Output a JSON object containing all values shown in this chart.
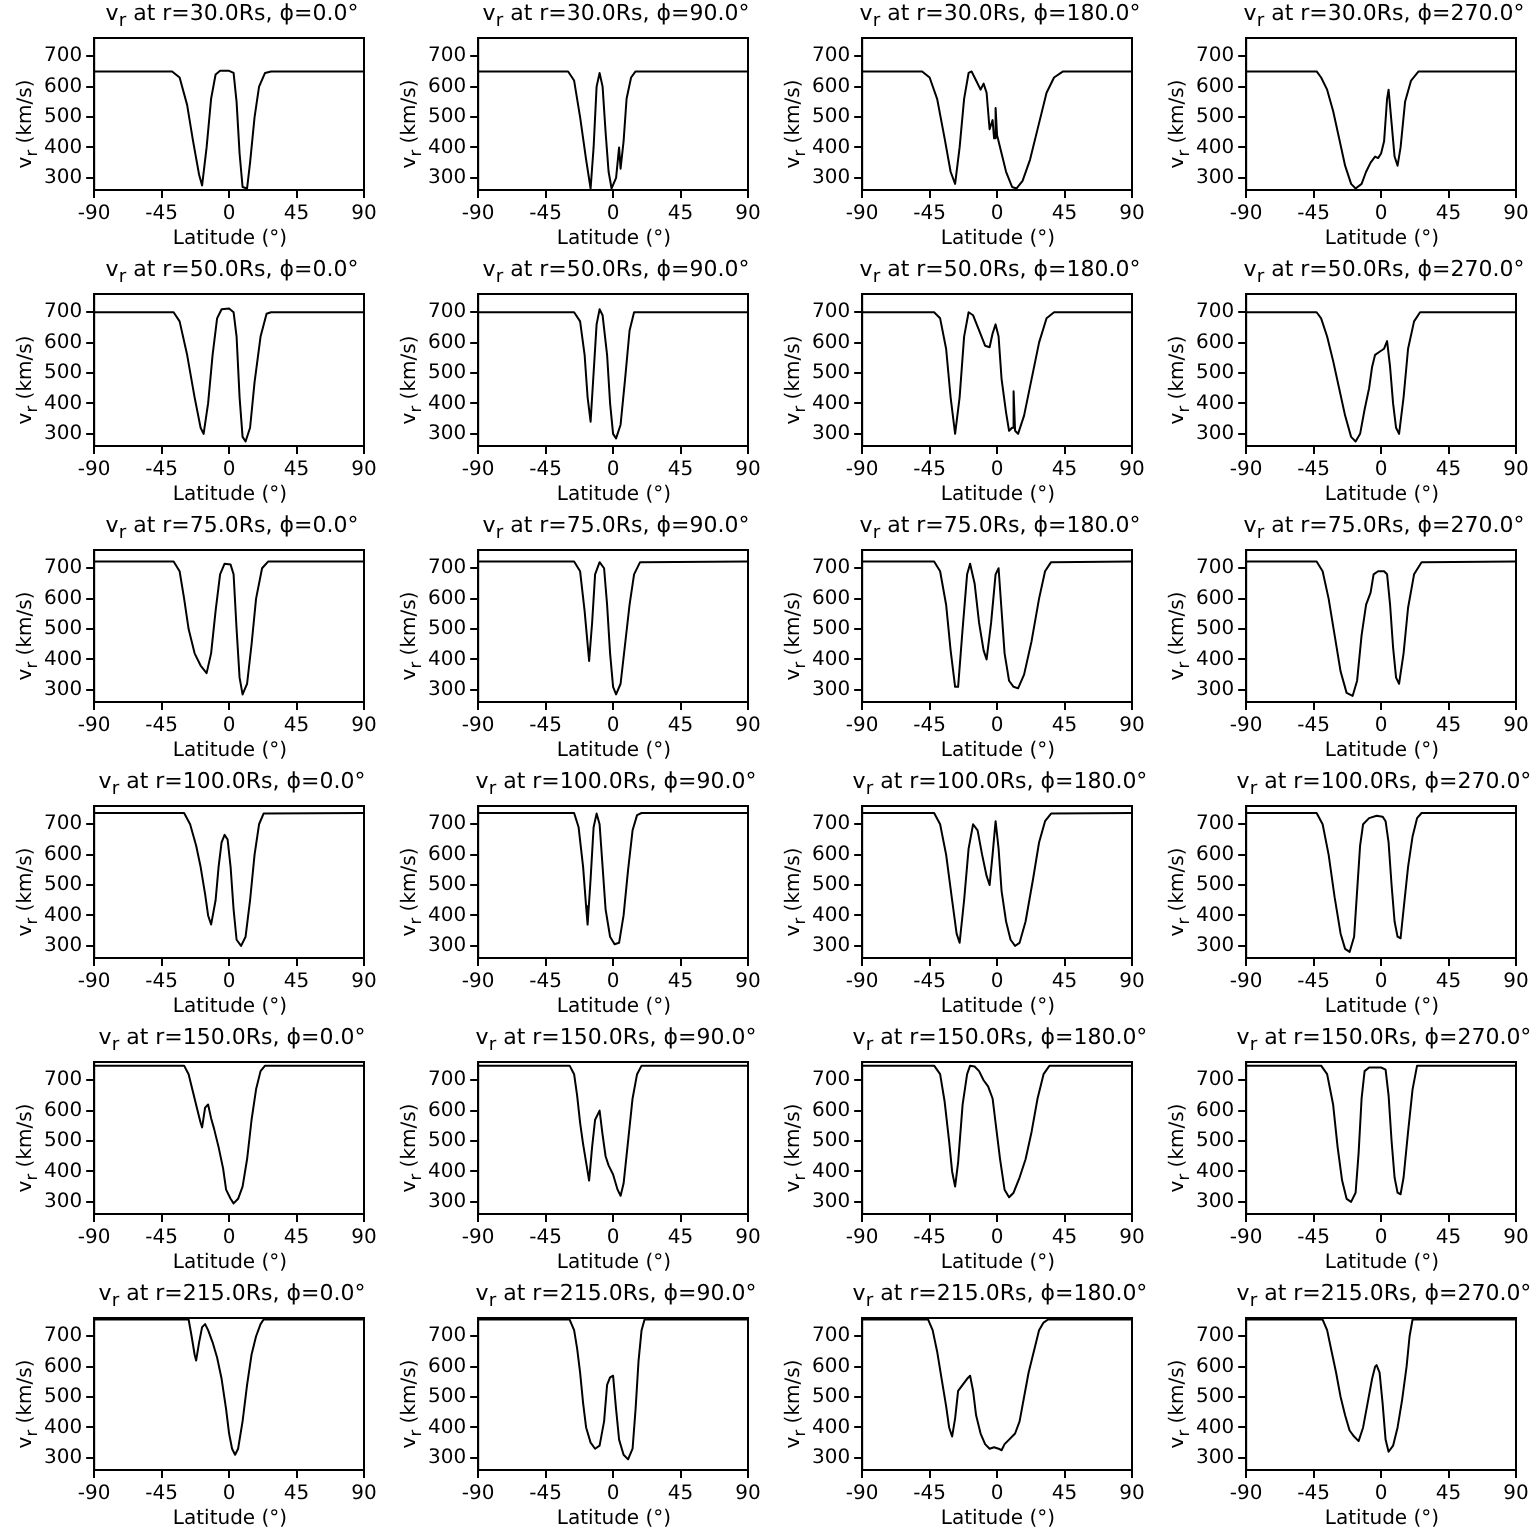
{
  "chart_data": [
    {
      "type": "line",
      "title": "v$_{r}$ at r=30.0Rs, ϕ=0.0°",
      "xlabel": "Latitude (°)",
      "ylabel": "v$_{r}$ (km/s)",
      "color": "#000000",
      "xlim": [
        -90,
        90
      ],
      "xticks": [
        -90,
        -45,
        0,
        45,
        90
      ],
      "ylim": [
        260,
        760
      ],
      "yticks": [
        300,
        400,
        500,
        600,
        700
      ],
      "x": [
        -90,
        -38,
        -33,
        -28,
        -24,
        -20,
        -18,
        -15,
        -12,
        -9,
        -6,
        0,
        3,
        5,
        7,
        9,
        12,
        14,
        17,
        20,
        24,
        28,
        90
      ],
      "values": [
        650,
        650,
        630,
        540,
        420,
        310,
        275,
        400,
        560,
        640,
        652,
        652,
        645,
        550,
        380,
        270,
        265,
        350,
        500,
        600,
        645,
        650,
        650
      ]
    },
    {
      "type": "line",
      "title": "v$_{r}$ at r=30.0Rs, ϕ=90.0°",
      "xlabel": "Latitude (°)",
      "ylabel": "v$_{r}$ (km/s)",
      "color": "#000000",
      "xlim": [
        -90,
        90
      ],
      "xticks": [
        -90,
        -45,
        0,
        45,
        90
      ],
      "ylim": [
        260,
        760
      ],
      "yticks": [
        300,
        400,
        500,
        600,
        700
      ],
      "x": [
        -90,
        -30,
        -26,
        -22,
        -18,
        -15,
        -13,
        -11,
        -9,
        -7,
        -5,
        -3,
        -1,
        2,
        4,
        5,
        7,
        9,
        12,
        15,
        90
      ],
      "values": [
        650,
        650,
        620,
        500,
        360,
        265,
        400,
        600,
        645,
        600,
        450,
        320,
        265,
        300,
        400,
        330,
        420,
        560,
        630,
        650,
        650
      ]
    },
    {
      "type": "line",
      "title": "v$_{r}$ at r=30.0Rs, ϕ=180.0°",
      "xlabel": "Latitude (°)",
      "ylabel": "v$_{r}$ (km/s)",
      "color": "#000000",
      "xlim": [
        -90,
        90
      ],
      "xticks": [
        -90,
        -45,
        0,
        45,
        90
      ],
      "ylim": [
        260,
        760
      ],
      "yticks": [
        300,
        400,
        500,
        600,
        700
      ],
      "x": [
        -90,
        -50,
        -45,
        -40,
        -35,
        -31,
        -28,
        -25,
        -22,
        -19,
        -17,
        -14,
        -11,
        -9,
        -7,
        -5,
        -3,
        -2,
        -1,
        0,
        3,
        6,
        10,
        13,
        17,
        22,
        28,
        33,
        38,
        44,
        90
      ],
      "values": [
        650,
        650,
        630,
        560,
        430,
        320,
        280,
        400,
        560,
        645,
        650,
        620,
        590,
        610,
        580,
        460,
        490,
        430,
        530,
        440,
        380,
        320,
        270,
        265,
        290,
        360,
        480,
        580,
        630,
        650,
        650
      ]
    },
    {
      "type": "line",
      "title": "v$_{r}$ at r=30.0Rs, ϕ=270.0°",
      "xlabel": "Latitude (°)",
      "ylabel": "v$_{r}$ (km/s)",
      "color": "#000000",
      "xlim": [
        -90,
        90
      ],
      "xticks": [
        -90,
        -45,
        0,
        45,
        90
      ],
      "ylim": [
        260,
        760
      ],
      "yticks": [
        300,
        400,
        500,
        600,
        700
      ],
      "x": [
        -90,
        -43,
        -40,
        -36,
        -32,
        -28,
        -24,
        -20,
        -17,
        -13,
        -10,
        -7,
        -4,
        -2,
        0,
        2,
        4,
        5,
        7,
        9,
        11,
        13,
        16,
        20,
        25,
        90
      ],
      "values": [
        650,
        650,
        630,
        590,
        520,
        430,
        340,
        280,
        265,
        280,
        320,
        350,
        370,
        365,
        380,
        420,
        560,
        590,
        480,
        370,
        340,
        400,
        550,
        620,
        650,
        650
      ]
    },
    {
      "type": "line",
      "title": "v$_{r}$ at r=50.0Rs, ϕ=0.0°",
      "xlabel": "Latitude (°)",
      "ylabel": "v$_{r}$ (km/s)",
      "color": "#000000",
      "xlim": [
        -90,
        90
      ],
      "xticks": [
        -90,
        -45,
        0,
        45,
        90
      ],
      "ylim": [
        260,
        760
      ],
      "yticks": [
        300,
        400,
        500,
        600,
        700
      ],
      "x": [
        -90,
        -37,
        -33,
        -28,
        -23,
        -19,
        -17,
        -14,
        -11,
        -8,
        -5,
        0,
        3,
        5,
        7,
        9,
        11,
        14,
        17,
        21,
        25,
        28,
        90
      ],
      "values": [
        700,
        700,
        670,
        560,
        420,
        320,
        300,
        400,
        560,
        680,
        710,
        712,
        700,
        620,
        420,
        290,
        275,
        320,
        470,
        620,
        695,
        700,
        700
      ]
    },
    {
      "type": "line",
      "title": "v$_{r}$ at r=50.0Rs, ϕ=90.0°",
      "xlabel": "Latitude (°)",
      "ylabel": "v$_{r}$ (km/s)",
      "color": "#000000",
      "xlim": [
        -90,
        90
      ],
      "xticks": [
        -90,
        -45,
        0,
        45,
        90
      ],
      "ylim": [
        260,
        760
      ],
      "yticks": [
        300,
        400,
        500,
        600,
        700
      ],
      "x": [
        -90,
        -26,
        -22,
        -19,
        -17,
        -15,
        -13,
        -11,
        -9,
        -7,
        -4,
        -2,
        0,
        2,
        5,
        8,
        11,
        14,
        90
      ],
      "values": [
        700,
        700,
        670,
        560,
        420,
        340,
        500,
        660,
        710,
        690,
        560,
        400,
        300,
        285,
        330,
        480,
        640,
        700,
        700
      ]
    },
    {
      "type": "line",
      "title": "v$_{r}$ at r=50.0Rs, ϕ=180.0°",
      "xlabel": "Latitude (°)",
      "ylabel": "v$_{r}$ (km/s)",
      "color": "#000000",
      "xlim": [
        -90,
        90
      ],
      "xticks": [
        -90,
        -45,
        0,
        45,
        90
      ],
      "ylim": [
        260,
        760
      ],
      "yticks": [
        300,
        400,
        500,
        600,
        700
      ],
      "x": [
        -90,
        -42,
        -38,
        -34,
        -31,
        -28,
        -25,
        -22,
        -19,
        -16,
        -12,
        -8,
        -5,
        -3,
        -1,
        1,
        3,
        6,
        8,
        10,
        11,
        12,
        14,
        18,
        23,
        28,
        33,
        38,
        90
      ],
      "values": [
        700,
        700,
        680,
        580,
        420,
        300,
        420,
        620,
        700,
        690,
        640,
        590,
        585,
        630,
        660,
        620,
        480,
        370,
        310,
        320,
        440,
        310,
        300,
        360,
        480,
        600,
        680,
        700,
        700
      ]
    },
    {
      "type": "line",
      "title": "v$_{r}$ at r=50.0Rs, ϕ=270.0°",
      "xlabel": "Latitude (°)",
      "ylabel": "v$_{r}$ (km/s)",
      "color": "#000000",
      "xlim": [
        -90,
        90
      ],
      "xticks": [
        -90,
        -45,
        0,
        45,
        90
      ],
      "ylim": [
        260,
        760
      ],
      "yticks": [
        300,
        400,
        500,
        600,
        700
      ],
      "x": [
        -90,
        -43,
        -40,
        -36,
        -32,
        -28,
        -24,
        -20,
        -17,
        -14,
        -11,
        -8,
        -6,
        -4,
        -1,
        2,
        4,
        6,
        8,
        10,
        12,
        15,
        18,
        22,
        26,
        90
      ],
      "values": [
        700,
        700,
        680,
        620,
        540,
        450,
        360,
        290,
        275,
        300,
        380,
        450,
        520,
        560,
        570,
        580,
        605,
        520,
        400,
        320,
        300,
        420,
        580,
        670,
        700,
        700
      ]
    },
    {
      "type": "line",
      "title": "v$_{r}$ at r=75.0Rs, ϕ=0.0°",
      "xlabel": "Latitude (°)",
      "ylabel": "v$_{r}$ (km/s)",
      "color": "#000000",
      "xlim": [
        -90,
        90
      ],
      "xticks": [
        -90,
        -45,
        0,
        45,
        90
      ],
      "ylim": [
        260,
        760
      ],
      "yticks": [
        300,
        400,
        500,
        600,
        700
      ],
      "x": [
        -90,
        -37,
        -33,
        -30,
        -27,
        -23,
        -19,
        -15,
        -12,
        -9,
        -6,
        -3,
        1,
        3,
        5,
        7,
        9,
        12,
        15,
        18,
        22,
        26,
        90
      ],
      "values": [
        722,
        722,
        690,
        600,
        500,
        420,
        380,
        355,
        420,
        560,
        680,
        715,
        712,
        680,
        500,
        340,
        285,
        320,
        450,
        600,
        700,
        722,
        722
      ]
    },
    {
      "type": "line",
      "title": "v$_{r}$ at r=75.0Rs, ϕ=90.0°",
      "xlabel": "Latitude (°)",
      "ylabel": "v$_{r}$ (km/s)",
      "color": "#000000",
      "xlim": [
        -90,
        90
      ],
      "xticks": [
        -90,
        -45,
        0,
        45,
        90
      ],
      "ylim": [
        260,
        760
      ],
      "yticks": [
        300,
        400,
        500,
        600,
        700
      ],
      "x": [
        -90,
        -26,
        -22,
        -19,
        -16,
        -14,
        -12,
        -9,
        -6,
        -4,
        -2,
        0,
        2,
        5,
        8,
        11,
        14,
        18,
        90
      ],
      "values": [
        722,
        722,
        690,
        560,
        395,
        520,
        680,
        720,
        700,
        580,
        420,
        310,
        285,
        320,
        450,
        580,
        680,
        720,
        722
      ]
    },
    {
      "type": "line",
      "title": "v$_{r}$ at r=75.0Rs, ϕ=180.0°",
      "xlabel": "Latitude (°)",
      "ylabel": "v$_{r}$ (km/s)",
      "color": "#000000",
      "xlim": [
        -90,
        90
      ],
      "xticks": [
        -90,
        -45,
        0,
        45,
        90
      ],
      "ylim": [
        260,
        760
      ],
      "yticks": [
        300,
        400,
        500,
        600,
        700
      ],
      "x": [
        -90,
        -42,
        -38,
        -34,
        -31,
        -28,
        -26,
        -23,
        -20,
        -18,
        -15,
        -12,
        -9,
        -7,
        -4,
        -1,
        1,
        3,
        5,
        8,
        11,
        14,
        18,
        23,
        28,
        32,
        36,
        90
      ],
      "values": [
        722,
        722,
        690,
        580,
        430,
        310,
        310,
        500,
        680,
        715,
        650,
        520,
        430,
        400,
        520,
        680,
        700,
        560,
        420,
        330,
        310,
        305,
        350,
        460,
        600,
        690,
        720,
        722
      ]
    },
    {
      "type": "line",
      "title": "v$_{r}$ at r=75.0Rs, ϕ=270.0°",
      "xlabel": "Latitude (°)",
      "ylabel": "v$_{r}$ (km/s)",
      "color": "#000000",
      "xlim": [
        -90,
        90
      ],
      "xticks": [
        -90,
        -45,
        0,
        45,
        90
      ],
      "ylim": [
        260,
        760
      ],
      "yticks": [
        300,
        400,
        500,
        600,
        700
      ],
      "x": [
        -90,
        -43,
        -39,
        -35,
        -31,
        -27,
        -23,
        -19,
        -16,
        -13,
        -10,
        -7,
        -5,
        -2,
        2,
        4,
        6,
        8,
        10,
        12,
        15,
        18,
        22,
        27,
        90
      ],
      "values": [
        722,
        722,
        690,
        600,
        480,
        360,
        290,
        280,
        330,
        480,
        580,
        620,
        680,
        690,
        690,
        680,
        580,
        440,
        340,
        320,
        420,
        570,
        680,
        720,
        722
      ]
    },
    {
      "type": "line",
      "title": "v$_{r}$ at r=100.0Rs, ϕ=0.0°",
      "xlabel": "Latitude (°)",
      "ylabel": "v$_{r}$ (km/s)",
      "color": "#000000",
      "xlim": [
        -90,
        90
      ],
      "xticks": [
        -90,
        -45,
        0,
        45,
        90
      ],
      "ylim": [
        260,
        760
      ],
      "yticks": [
        300,
        400,
        500,
        600,
        700
      ],
      "x": [
        -90,
        -30,
        -26,
        -22,
        -19,
        -16,
        -14,
        -12,
        -9,
        -7,
        -5,
        -3,
        -1,
        1,
        3,
        5,
        8,
        11,
        14,
        17,
        20,
        23,
        90
      ],
      "values": [
        737,
        737,
        700,
        630,
        560,
        470,
        400,
        370,
        450,
        560,
        640,
        665,
        650,
        560,
        420,
        320,
        300,
        330,
        450,
        600,
        700,
        735,
        737
      ]
    },
    {
      "type": "line",
      "title": "v$_{r}$ at r=100.0Rs, ϕ=90.0°",
      "xlabel": "Latitude (°)",
      "ylabel": "v$_{r}$ (km/s)",
      "color": "#000000",
      "xlim": [
        -90,
        90
      ],
      "xticks": [
        -90,
        -45,
        0,
        45,
        90
      ],
      "ylim": [
        260,
        760
      ],
      "yticks": [
        300,
        400,
        500,
        600,
        700
      ],
      "x": [
        -90,
        -26,
        -23,
        -20,
        -18,
        -17,
        -15,
        -13,
        -11,
        -9,
        -7,
        -5,
        -2,
        1,
        4,
        7,
        10,
        13,
        16,
        19,
        90
      ],
      "values": [
        737,
        737,
        690,
        560,
        430,
        370,
        520,
        690,
        735,
        700,
        560,
        420,
        330,
        305,
        310,
        400,
        550,
        680,
        730,
        737,
        737
      ]
    },
    {
      "type": "line",
      "title": "v$_{r}$ at r=100.0Rs, ϕ=180.0°",
      "xlabel": "Latitude (°)",
      "ylabel": "v$_{r}$ (km/s)",
      "color": "#000000",
      "xlim": [
        -90,
        90
      ],
      "xticks": [
        -90,
        -45,
        0,
        45,
        90
      ],
      "ylim": [
        260,
        760
      ],
      "yticks": [
        300,
        400,
        500,
        600,
        700
      ],
      "x": [
        -90,
        -42,
        -38,
        -34,
        -30,
        -27,
        -25,
        -22,
        -19,
        -16,
        -13,
        -10,
        -7,
        -5,
        -3,
        -1,
        1,
        3,
        6,
        9,
        12,
        15,
        19,
        24,
        28,
        32,
        36,
        90
      ],
      "values": [
        737,
        737,
        700,
        600,
        450,
        340,
        310,
        450,
        620,
        700,
        680,
        600,
        530,
        500,
        600,
        710,
        620,
        480,
        380,
        320,
        300,
        310,
        380,
        520,
        640,
        710,
        735,
        737
      ]
    },
    {
      "type": "line",
      "title": "v$_{r}$ at r=100.0Rs, ϕ=270.0°",
      "xlabel": "Latitude (°)",
      "ylabel": "v$_{r}$ (km/s)",
      "color": "#000000",
      "xlim": [
        -90,
        90
      ],
      "xticks": [
        -90,
        -45,
        0,
        45,
        90
      ],
      "ylim": [
        260,
        760
      ],
      "yticks": [
        300,
        400,
        500,
        600,
        700
      ],
      "x": [
        -90,
        -43,
        -39,
        -35,
        -31,
        -27,
        -24,
        -21,
        -18,
        -16,
        -14,
        -12,
        -8,
        -3,
        1,
        3,
        5,
        7,
        9,
        11,
        13,
        15,
        18,
        21,
        24,
        27,
        90
      ],
      "values": [
        737,
        737,
        700,
        600,
        460,
        340,
        290,
        280,
        330,
        480,
        630,
        700,
        720,
        728,
        725,
        710,
        640,
        500,
        380,
        330,
        325,
        420,
        560,
        660,
        720,
        737,
        737
      ]
    },
    {
      "type": "line",
      "title": "v$_{r}$ at r=150.0Rs, ϕ=0.0°",
      "xlabel": "Latitude (°)",
      "ylabel": "v$_{r}$ (km/s)",
      "color": "#000000",
      "xlim": [
        -90,
        90
      ],
      "xticks": [
        -90,
        -45,
        0,
        45,
        90
      ],
      "ylim": [
        260,
        760
      ],
      "yticks": [
        300,
        400,
        500,
        600,
        700
      ],
      "x": [
        -90,
        -30,
        -27,
        -24,
        -21,
        -19,
        -18,
        -16,
        -14,
        -12,
        -10,
        -7,
        -4,
        -2,
        1,
        3,
        6,
        9,
        12,
        15,
        18,
        21,
        24,
        90
      ],
      "values": [
        748,
        748,
        720,
        660,
        600,
        560,
        545,
        610,
        620,
        575,
        540,
        480,
        410,
        340,
        310,
        295,
        310,
        350,
        440,
        570,
        670,
        730,
        748,
        748
      ]
    },
    {
      "type": "line",
      "title": "v$_{r}$ at r=150.0Rs, ϕ=90.0°",
      "xlabel": "Latitude (°)",
      "ylabel": "v$_{r}$ (km/s)",
      "color": "#000000",
      "xlim": [
        -90,
        90
      ],
      "xticks": [
        -90,
        -45,
        0,
        45,
        90
      ],
      "ylim": [
        260,
        760
      ],
      "yticks": [
        300,
        400,
        500,
        600,
        700
      ],
      "x": [
        -90,
        -29,
        -26,
        -24,
        -22,
        -20,
        -18,
        -16,
        -14,
        -12,
        -9,
        -7,
        -5,
        -3,
        0,
        3,
        5,
        7,
        10,
        13,
        16,
        19,
        90
      ],
      "values": [
        748,
        748,
        720,
        650,
        560,
        490,
        430,
        370,
        480,
        570,
        600,
        520,
        450,
        420,
        390,
        340,
        320,
        360,
        500,
        640,
        720,
        748,
        748
      ]
    },
    {
      "type": "line",
      "title": "v$_{r}$ at r=150.0Rs, ϕ=180.0°",
      "xlabel": "Latitude (°)",
      "ylabel": "v$_{r}$ (km/s)",
      "color": "#000000",
      "xlim": [
        -90,
        90
      ],
      "xticks": [
        -90,
        -45,
        0,
        45,
        90
      ],
      "ylim": [
        260,
        760
      ],
      "yticks": [
        300,
        400,
        500,
        600,
        700
      ],
      "x": [
        -90,
        -42,
        -38,
        -35,
        -32,
        -30,
        -28,
        -26,
        -23,
        -20,
        -18,
        -15,
        -12,
        -9,
        -6,
        -3,
        -1,
        2,
        5,
        8,
        11,
        15,
        19,
        23,
        27,
        31,
        35,
        90
      ],
      "values": [
        748,
        748,
        720,
        630,
        500,
        400,
        350,
        430,
        620,
        720,
        748,
        745,
        730,
        700,
        680,
        640,
        560,
        440,
        340,
        315,
        330,
        380,
        440,
        530,
        640,
        720,
        748,
        748
      ]
    },
    {
      "type": "line",
      "title": "v$_{r}$ at r=150.0Rs, ϕ=270.0°",
      "xlabel": "Latitude (°)",
      "ylabel": "v$_{r}$ (km/s)",
      "color": "#000000",
      "xlim": [
        -90,
        90
      ],
      "xticks": [
        -90,
        -45,
        0,
        45,
        90
      ],
      "ylim": [
        260,
        760
      ],
      "yticks": [
        300,
        400,
        500,
        600,
        700
      ],
      "x": [
        -90,
        -40,
        -36,
        -32,
        -29,
        -26,
        -23,
        -20,
        -17,
        -15,
        -13,
        -11,
        -8,
        0,
        3,
        5,
        7,
        9,
        11,
        13,
        15,
        18,
        21,
        24,
        90
      ],
      "values": [
        748,
        748,
        720,
        620,
        480,
        370,
        310,
        300,
        330,
        460,
        640,
        730,
        742,
        742,
        735,
        650,
        500,
        380,
        330,
        325,
        380,
        530,
        670,
        748,
        748
      ]
    },
    {
      "type": "line",
      "title": "v$_{r}$ at r=215.0Rs, ϕ=0.0°",
      "xlabel": "Latitude (°)",
      "ylabel": "v$_{r}$ (km/s)",
      "color": "#000000",
      "xlim": [
        -90,
        90
      ],
      "xticks": [
        -90,
        -45,
        0,
        45,
        90
      ],
      "ylim": [
        260,
        760
      ],
      "yticks": [
        300,
        400,
        500,
        600,
        700
      ],
      "x": [
        -90,
        -27,
        -25,
        -23,
        -22,
        -20,
        -18,
        -16,
        -14,
        -11,
        -8,
        -5,
        -2,
        0,
        2,
        4,
        6,
        9,
        12,
        15,
        18,
        21,
        23,
        90
      ],
      "values": [
        755,
        755,
        700,
        640,
        620,
        680,
        730,
        740,
        720,
        680,
        630,
        560,
        460,
        380,
        330,
        310,
        330,
        420,
        540,
        640,
        700,
        740,
        755,
        755
      ]
    },
    {
      "type": "line",
      "title": "v$_{r}$ at r=215.0Rs, ϕ=90.0°",
      "xlabel": "Latitude (°)",
      "ylabel": "v$_{r}$ (km/s)",
      "color": "#000000",
      "xlim": [
        -90,
        90
      ],
      "xticks": [
        -90,
        -45,
        0,
        45,
        90
      ],
      "ylim": [
        260,
        760
      ],
      "yticks": [
        300,
        400,
        500,
        600,
        700
      ],
      "x": [
        -90,
        -29,
        -26,
        -24,
        -22,
        -20,
        -18,
        -15,
        -12,
        -9,
        -6,
        -4,
        -2,
        0,
        2,
        4,
        7,
        10,
        13,
        15,
        17,
        19,
        21,
        90
      ],
      "values": [
        755,
        755,
        720,
        660,
        580,
        480,
        400,
        350,
        330,
        340,
        420,
        540,
        565,
        570,
        460,
        360,
        310,
        295,
        330,
        460,
        620,
        720,
        755,
        755
      ]
    },
    {
      "type": "line",
      "title": "v$_{r}$ at r=215.0Rs, ϕ=180.0°",
      "xlabel": "Latitude (°)",
      "ylabel": "v$_{r}$ (km/s)",
      "color": "#000000",
      "xlim": [
        -90,
        90
      ],
      "xticks": [
        -90,
        -45,
        0,
        45,
        90
      ],
      "ylim": [
        260,
        760
      ],
      "yticks": [
        300,
        400,
        500,
        600,
        700
      ],
      "x": [
        -90,
        -46,
        -43,
        -40,
        -37,
        -34,
        -32,
        -30,
        -28,
        -26,
        -23,
        -20,
        -18,
        -16,
        -14,
        -11,
        -8,
        -5,
        -2,
        1,
        3,
        5,
        8,
        12,
        15,
        18,
        21,
        25,
        28,
        31,
        34,
        90
      ],
      "values": [
        755,
        755,
        720,
        650,
        560,
        470,
        400,
        370,
        430,
        520,
        540,
        560,
        570,
        520,
        440,
        380,
        345,
        330,
        335,
        330,
        325,
        345,
        360,
        380,
        420,
        500,
        580,
        660,
        720,
        745,
        755,
        755
      ]
    },
    {
      "type": "line",
      "title": "v$_{r}$ at r=215.0Rs, ϕ=270.0°",
      "xlabel": "Latitude (°)",
      "ylabel": "v$_{r}$ (km/s)",
      "color": "#000000",
      "xlim": [
        -90,
        90
      ],
      "xticks": [
        -90,
        -45,
        0,
        45,
        90
      ],
      "ylim": [
        260,
        760
      ],
      "yticks": [
        300,
        400,
        500,
        600,
        700
      ],
      "x": [
        -90,
        -39,
        -36,
        -33,
        -30,
        -27,
        -24,
        -21,
        -18,
        -15,
        -12,
        -9,
        -6,
        -4,
        -3,
        -1,
        1,
        3,
        5,
        8,
        11,
        14,
        17,
        19,
        21,
        90
      ],
      "values": [
        755,
        755,
        720,
        650,
        580,
        500,
        440,
        390,
        370,
        355,
        400,
        480,
        560,
        600,
        605,
        580,
        480,
        360,
        320,
        340,
        400,
        490,
        600,
        700,
        755,
        755
      ]
    }
  ]
}
